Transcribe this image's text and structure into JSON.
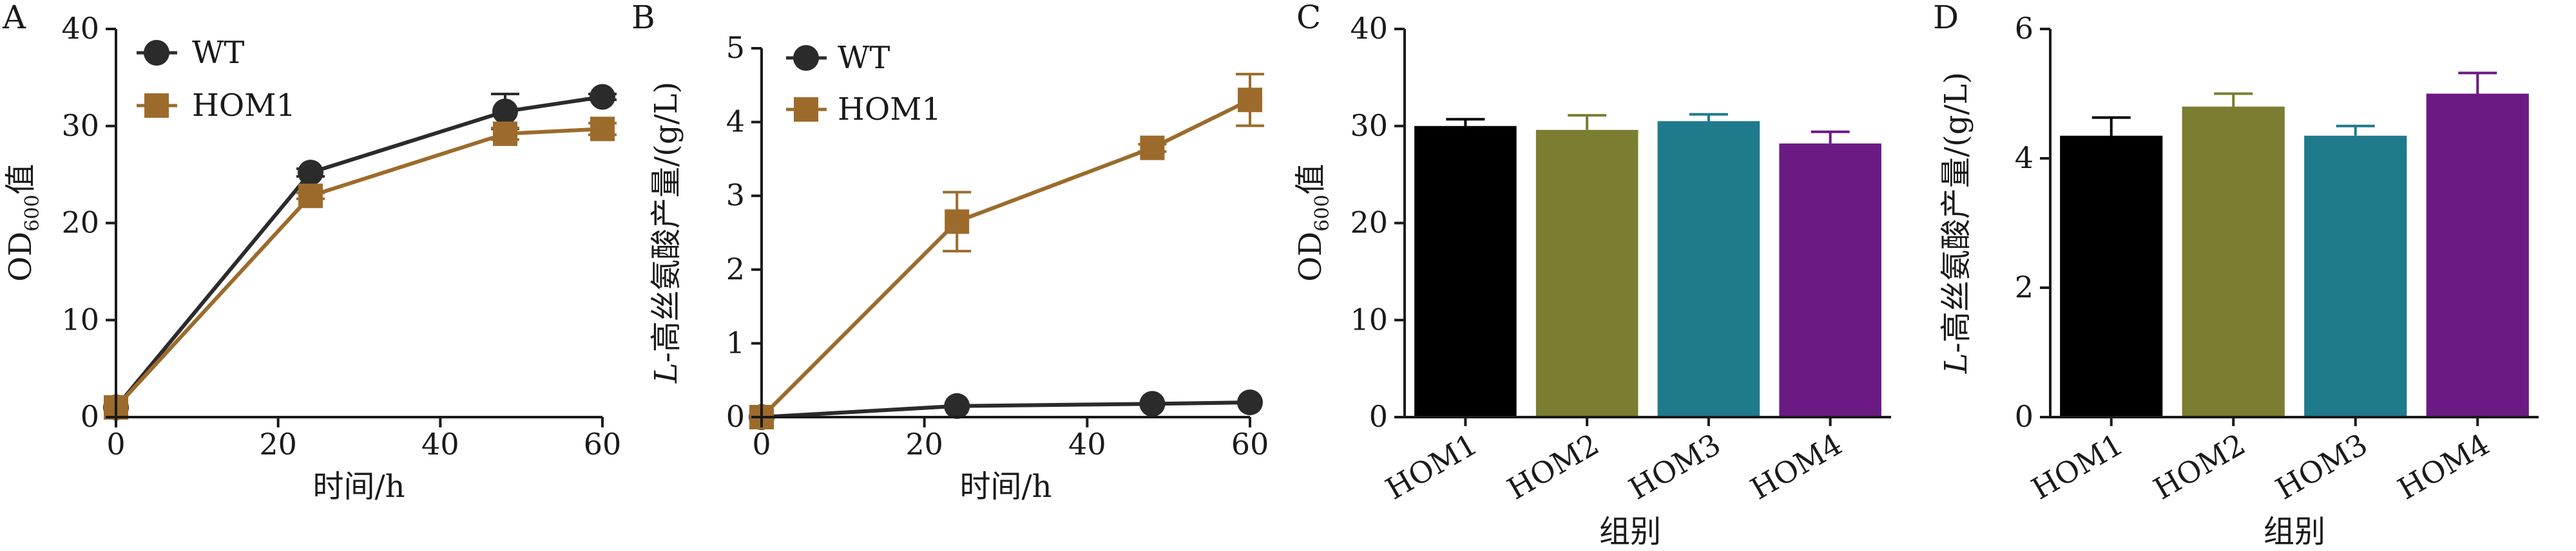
{
  "colors": {
    "wt": "#2b2b2b",
    "hom1": "#9c6b2c",
    "bar_hom1": "#000000",
    "bar_hom2": "#7b7d31",
    "bar_hom3": "#1f7a8c",
    "bar_hom4": "#6b1a84",
    "axis": "#1a1a1a"
  },
  "chart_data": [
    {
      "panel": "A",
      "type": "line",
      "xlabel": "时间/h",
      "ylabel_main": "OD",
      "ylabel_sub": "600",
      "ylabel_suffix": "值",
      "xlim": [
        0,
        60
      ],
      "ylim": [
        0,
        40
      ],
      "xticks": [
        "0",
        "20",
        "40",
        "60"
      ],
      "yticks": [
        "0",
        "10",
        "20",
        "30",
        "40"
      ],
      "series": [
        {
          "name": "WT",
          "marker": "circle",
          "x": [
            0,
            24,
            48,
            60
          ],
          "y": [
            1,
            25.2,
            31.5,
            33
          ],
          "err": [
            0,
            0.4,
            1.8,
            0.3
          ]
        },
        {
          "name": "HOM1",
          "marker": "square",
          "x": [
            0,
            24,
            48,
            60
          ],
          "y": [
            1,
            22.8,
            29.2,
            29.7
          ],
          "err": [
            0,
            0.3,
            0.6,
            0.6
          ]
        }
      ]
    },
    {
      "panel": "B",
      "type": "line",
      "xlabel": "时间/h",
      "ylabel_italic": "L",
      "ylabel_rest": "-高丝氨酸产量/(g/L)",
      "xlim": [
        0,
        60
      ],
      "ylim": [
        0,
        5
      ],
      "xticks": [
        "0",
        "20",
        "40",
        "60"
      ],
      "yticks": [
        "0",
        "1",
        "2",
        "3",
        "4",
        "5"
      ],
      "series": [
        {
          "name": "WT",
          "marker": "circle",
          "x": [
            0,
            24,
            48,
            60
          ],
          "y": [
            0,
            0.15,
            0.18,
            0.2
          ],
          "err": [
            0,
            0,
            0,
            0
          ]
        },
        {
          "name": "HOM1",
          "marker": "square",
          "x": [
            0,
            24,
            48,
            60
          ],
          "y": [
            0,
            2.65,
            3.65,
            4.3
          ],
          "err": [
            0,
            0.4,
            0.05,
            0.35
          ]
        }
      ]
    },
    {
      "panel": "C",
      "type": "bar",
      "xlabel": "组别",
      "ylabel_main": "OD",
      "ylabel_sub": "600",
      "ylabel_suffix": "值",
      "ylim": [
        0,
        40
      ],
      "yticks": [
        "0",
        "10",
        "20",
        "30",
        "40"
      ],
      "categories": [
        "HOM1",
        "HOM2",
        "HOM3",
        "HOM4"
      ],
      "values": [
        30,
        29.6,
        30.5,
        28.2
      ],
      "errors": [
        0.7,
        1.5,
        0.7,
        1.2
      ]
    },
    {
      "panel": "D",
      "type": "bar",
      "xlabel": "组别",
      "ylabel_italic": "L",
      "ylabel_rest": "-高丝氨酸产量/(g/L)",
      "ylim": [
        0,
        6
      ],
      "yticks": [
        "0",
        "2",
        "4",
        "6"
      ],
      "categories": [
        "HOM1",
        "HOM2",
        "HOM3",
        "HOM4"
      ],
      "values": [
        4.35,
        4.8,
        4.35,
        5.0
      ],
      "errors": [
        0.28,
        0.2,
        0.15,
        0.32
      ]
    }
  ]
}
